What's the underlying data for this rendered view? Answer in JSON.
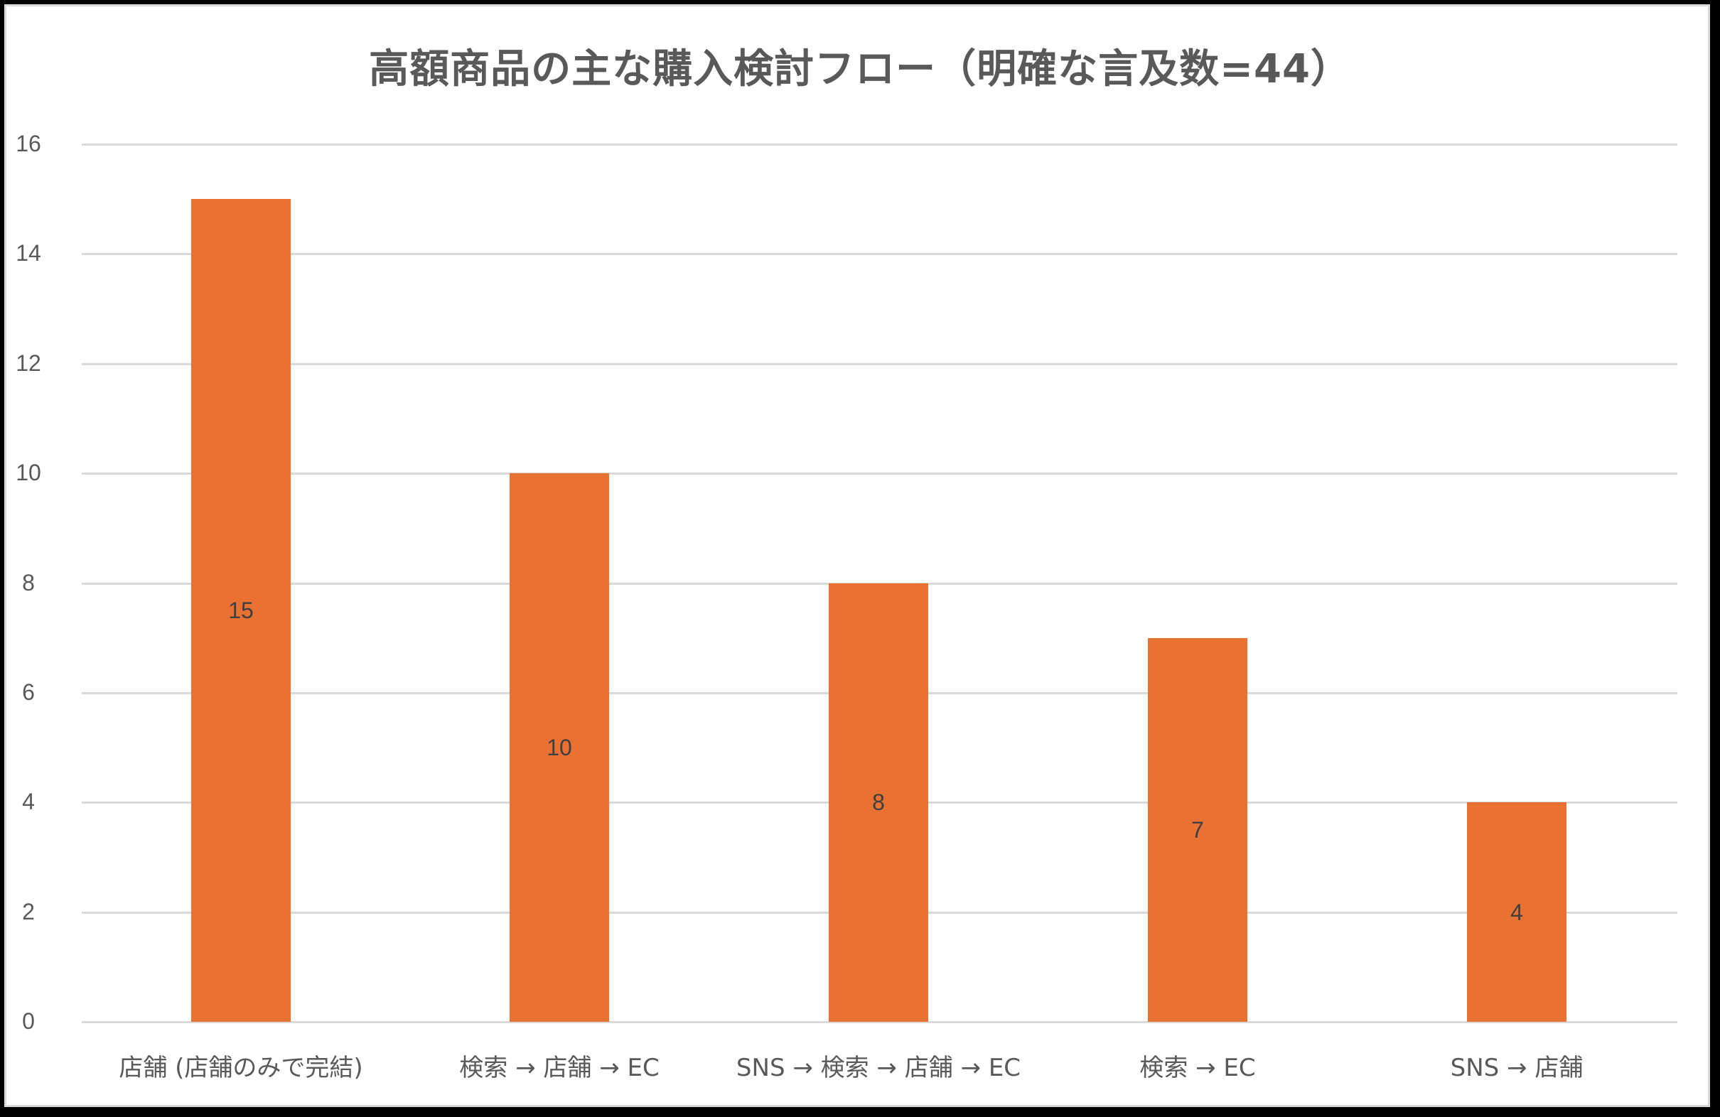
{
  "chart_data": {
    "type": "bar",
    "title": "高額商品の主な購入検討フロー（明確な言及数=44）",
    "categories": [
      "店舗 (店舗のみで完結)",
      "検索 → 店舗 → EC",
      "SNS → 検索 → 店舗 → EC",
      "検索 → EC",
      "SNS → 店舗"
    ],
    "values": [
      15,
      10,
      8,
      7,
      4
    ],
    "data_labels": [
      "15",
      "10",
      "8",
      "7",
      "4"
    ],
    "xlabel": "",
    "ylabel": "",
    "ylim": [
      0,
      16
    ],
    "yticks": [
      "0",
      "2",
      "4",
      "6",
      "8",
      "10",
      "12",
      "14",
      "16"
    ],
    "grid": true,
    "legend": "none",
    "bar_color": "#e97132",
    "data_label_position": "center"
  }
}
